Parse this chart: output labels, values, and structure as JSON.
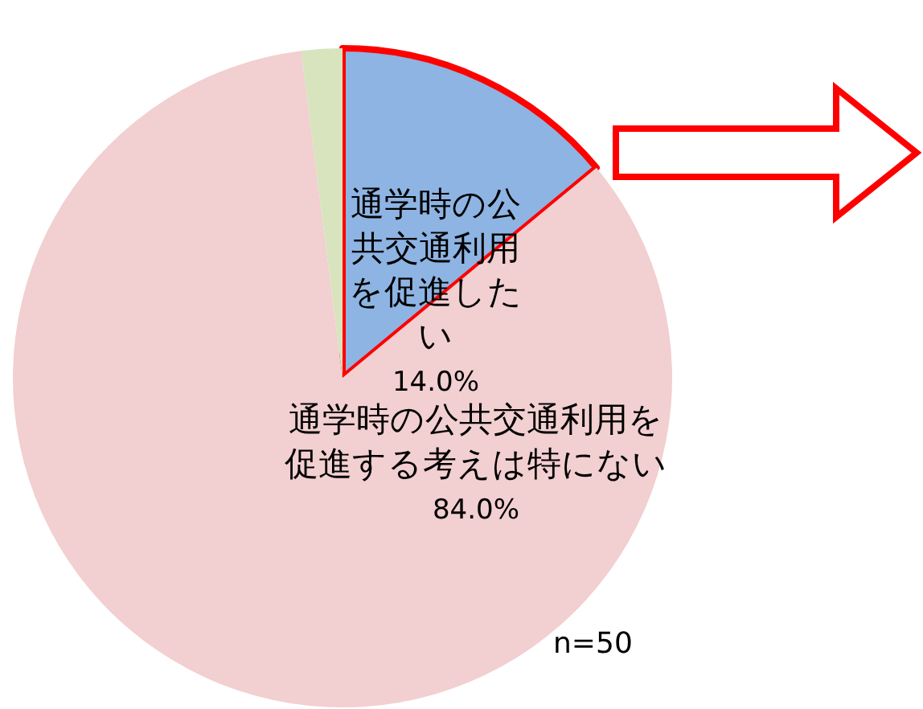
{
  "chart_data": {
    "type": "pie",
    "categories": [
      "通学時の公共交通利用を促進したい",
      "通学時の公共交通利用を促進する考えは特にない",
      null
    ],
    "values": [
      14.0,
      84.0,
      2.0
    ],
    "value_labels": [
      "14.0%",
      "84.0%",
      null
    ],
    "colors": [
      "#8eb4e3",
      "#f2cfd0",
      "#d7e4bd"
    ],
    "legend": false,
    "annotations": [
      "n=50"
    ]
  }
}
